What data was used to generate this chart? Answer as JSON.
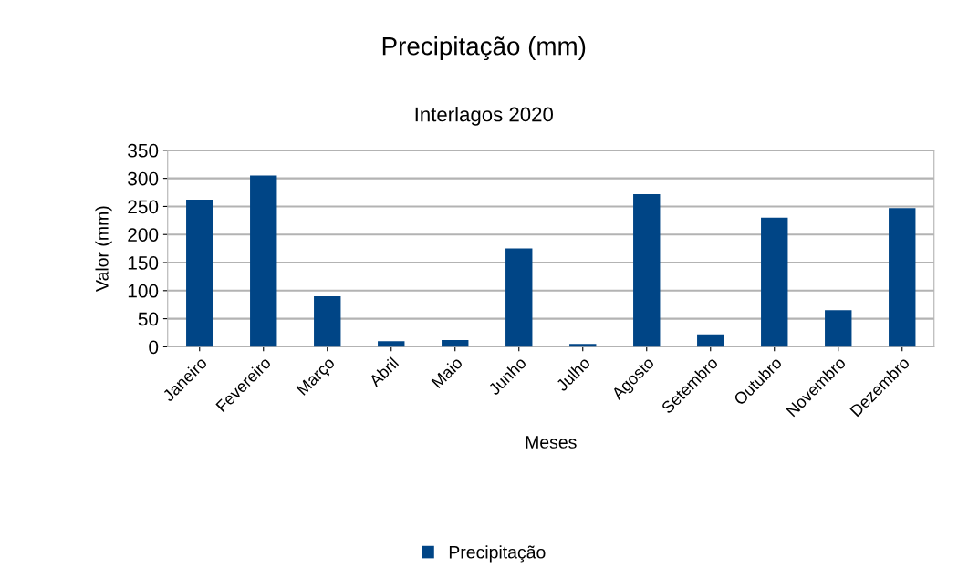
{
  "chart_data": {
    "type": "bar",
    "title": "Precipitação (mm)",
    "subtitle": "Interlagos 2020",
    "xlabel": "Meses",
    "ylabel": "Valor (mm)",
    "categories": [
      "Janeiro",
      "Fevereiro",
      "Março",
      "Abril",
      "Maio",
      "Junho",
      "Julho",
      "Agosto",
      "Setembro",
      "Outubro",
      "Novembro",
      "Dezembro"
    ],
    "series": [
      {
        "name": "Precipitação",
        "color": "#004586",
        "values": [
          262,
          305,
          90,
          10,
          12,
          175,
          5,
          272,
          22,
          230,
          65,
          247
        ]
      }
    ],
    "ylim": [
      0,
      350
    ],
    "yticks": [
      0,
      50,
      100,
      150,
      200,
      250,
      300,
      350
    ],
    "grid": "y",
    "legend": "bottom"
  }
}
